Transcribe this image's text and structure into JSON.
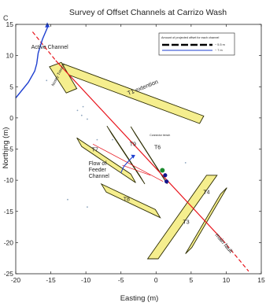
{
  "panel_label": "C",
  "chart_data": {
    "type": "scatter",
    "title": "Survey of Offset Channels at Carrizo Wash",
    "xlabel": "Easting (m)",
    "ylabel": "Northing (m)",
    "xlim": [
      -20,
      15
    ],
    "ylim": [
      -25,
      15
    ],
    "xticks": [
      -20,
      -15,
      -10,
      -5,
      0,
      5,
      10,
      15
    ],
    "yticks": [
      -25,
      -20,
      -15,
      -10,
      -5,
      0,
      5,
      10,
      15
    ],
    "grid": false,
    "legend": {
      "title": "Amount of projected offset for each channel",
      "placement": "top-right",
      "entries": [
        {
          "label": "~ 5.5 m",
          "color": "#000000",
          "style": "dashed-thick"
        },
        {
          "label": "~ 7 m",
          "color": "#1e3fd0",
          "style": "solid"
        }
      ]
    },
    "colors": {
      "trench_fill": "#f5ee8e",
      "trench_stroke": "#2b2b00",
      "fault": "#e8141c",
      "channel": "#1e3fd0",
      "feeder_dot": "#1b8a2e",
      "feeder_dot_dark": "#14148c"
    },
    "trenches": [
      {
        "name": "T1 extention",
        "polygon": [
          [
            -13.3,
            8.7
          ],
          [
            6.8,
            0.3
          ],
          [
            6.2,
            -0.9
          ],
          [
            -13.9,
            7.5
          ]
        ]
      },
      {
        "name": "Nosey Trench",
        "polygon": [
          [
            -15.2,
            8.2
          ],
          [
            -13.5,
            8.9
          ],
          [
            -11.3,
            4.7
          ],
          [
            -12.8,
            4.0
          ]
        ]
      },
      {
        "name": "T7",
        "polygon": [
          [
            -11.3,
            -3.2
          ],
          [
            -10.6,
            -4.6
          ],
          [
            -2.9,
            -10.4
          ],
          [
            -3.6,
            -9.0
          ]
        ]
      },
      {
        "name": "T9",
        "polygon": [
          [
            -7.0,
            -1.3
          ],
          [
            -6.3,
            -2.6
          ],
          [
            -1.6,
            -10.6
          ],
          [
            -2.3,
            -9.3
          ]
        ]
      },
      {
        "name": "T6",
        "polygon": [
          [
            -3.6,
            -1.4
          ],
          [
            -2.9,
            -2.7
          ],
          [
            1.6,
            -10.6
          ],
          [
            0.9,
            -9.3
          ]
        ]
      },
      {
        "name": "T8",
        "polygon": [
          [
            -7.8,
            -10.6
          ],
          [
            -7.1,
            -11.9
          ],
          [
            0.6,
            -16.0
          ],
          [
            -0.1,
            -14.7
          ]
        ]
      },
      {
        "name": "T4",
        "polygon": [
          [
            9.2,
            -12.2
          ],
          [
            10.1,
            -11.2
          ],
          [
            5.1,
            -20.8
          ],
          [
            4.2,
            -21.8
          ]
        ]
      },
      {
        "name": "T3",
        "polygon": [
          [
            7.2,
            -9.2
          ],
          [
            8.7,
            -9.2
          ],
          [
            0.3,
            -22.6
          ],
          [
            -1.2,
            -22.6
          ]
        ]
      }
    ],
    "fault_label": "main fault",
    "fault_line": [
      [
        -14.3,
        9.2
      ],
      [
        9.5,
        -19.6
      ]
    ],
    "fault_extension": [
      [
        9.5,
        -19.6
      ],
      [
        13.2,
        -24.6
      ]
    ],
    "fault_extension_nw": [
      [
        -17.6,
        13.8
      ],
      [
        -14.3,
        9.2
      ]
    ],
    "active_channel": {
      "label": "Active Channel",
      "points": [
        [
          -20,
          3.2
        ],
        [
          -18.2,
          5.7
        ],
        [
          -17.3,
          7.5
        ],
        [
          -17.0,
          8.7
        ],
        [
          -16.8,
          10.4
        ],
        [
          -16.2,
          12.6
        ],
        [
          -15.4,
          14.7
        ]
      ]
    },
    "feeder_channel": {
      "label": "Flow of Feeder Channel",
      "points": [
        [
          -5.0,
          -8.8
        ],
        [
          -4.6,
          -7.8
        ],
        [
          -3.9,
          -6.9
        ],
        [
          -3.3,
          -6.2
        ]
      ]
    },
    "annotations": [
      {
        "text": "Connector trench",
        "at": [
          -0.9,
          -2.9
        ]
      }
    ],
    "feeder_points": [
      {
        "x": 0.9,
        "y": -8.4,
        "kind": "green"
      },
      {
        "x": 1.3,
        "y": -9.2,
        "kind": "dark"
      },
      {
        "x": 1.5,
        "y": -10.2,
        "kind": "dark"
      }
    ],
    "scatter_dots": [
      {
        "x": -15.6,
        "y": 6.0
      },
      {
        "x": -11.2,
        "y": 1.2
      },
      {
        "x": -10.4,
        "y": 1.8
      },
      {
        "x": -9.8,
        "y": -0.2
      },
      {
        "x": -10.6,
        "y": 0.4
      },
      {
        "x": -12.6,
        "y": -13.1
      },
      {
        "x": -9.8,
        "y": -14.3
      },
      {
        "x": -8.4,
        "y": -3.5
      },
      {
        "x": -6.2,
        "y": -3.5
      },
      {
        "x": 4.2,
        "y": -7.2
      }
    ]
  }
}
